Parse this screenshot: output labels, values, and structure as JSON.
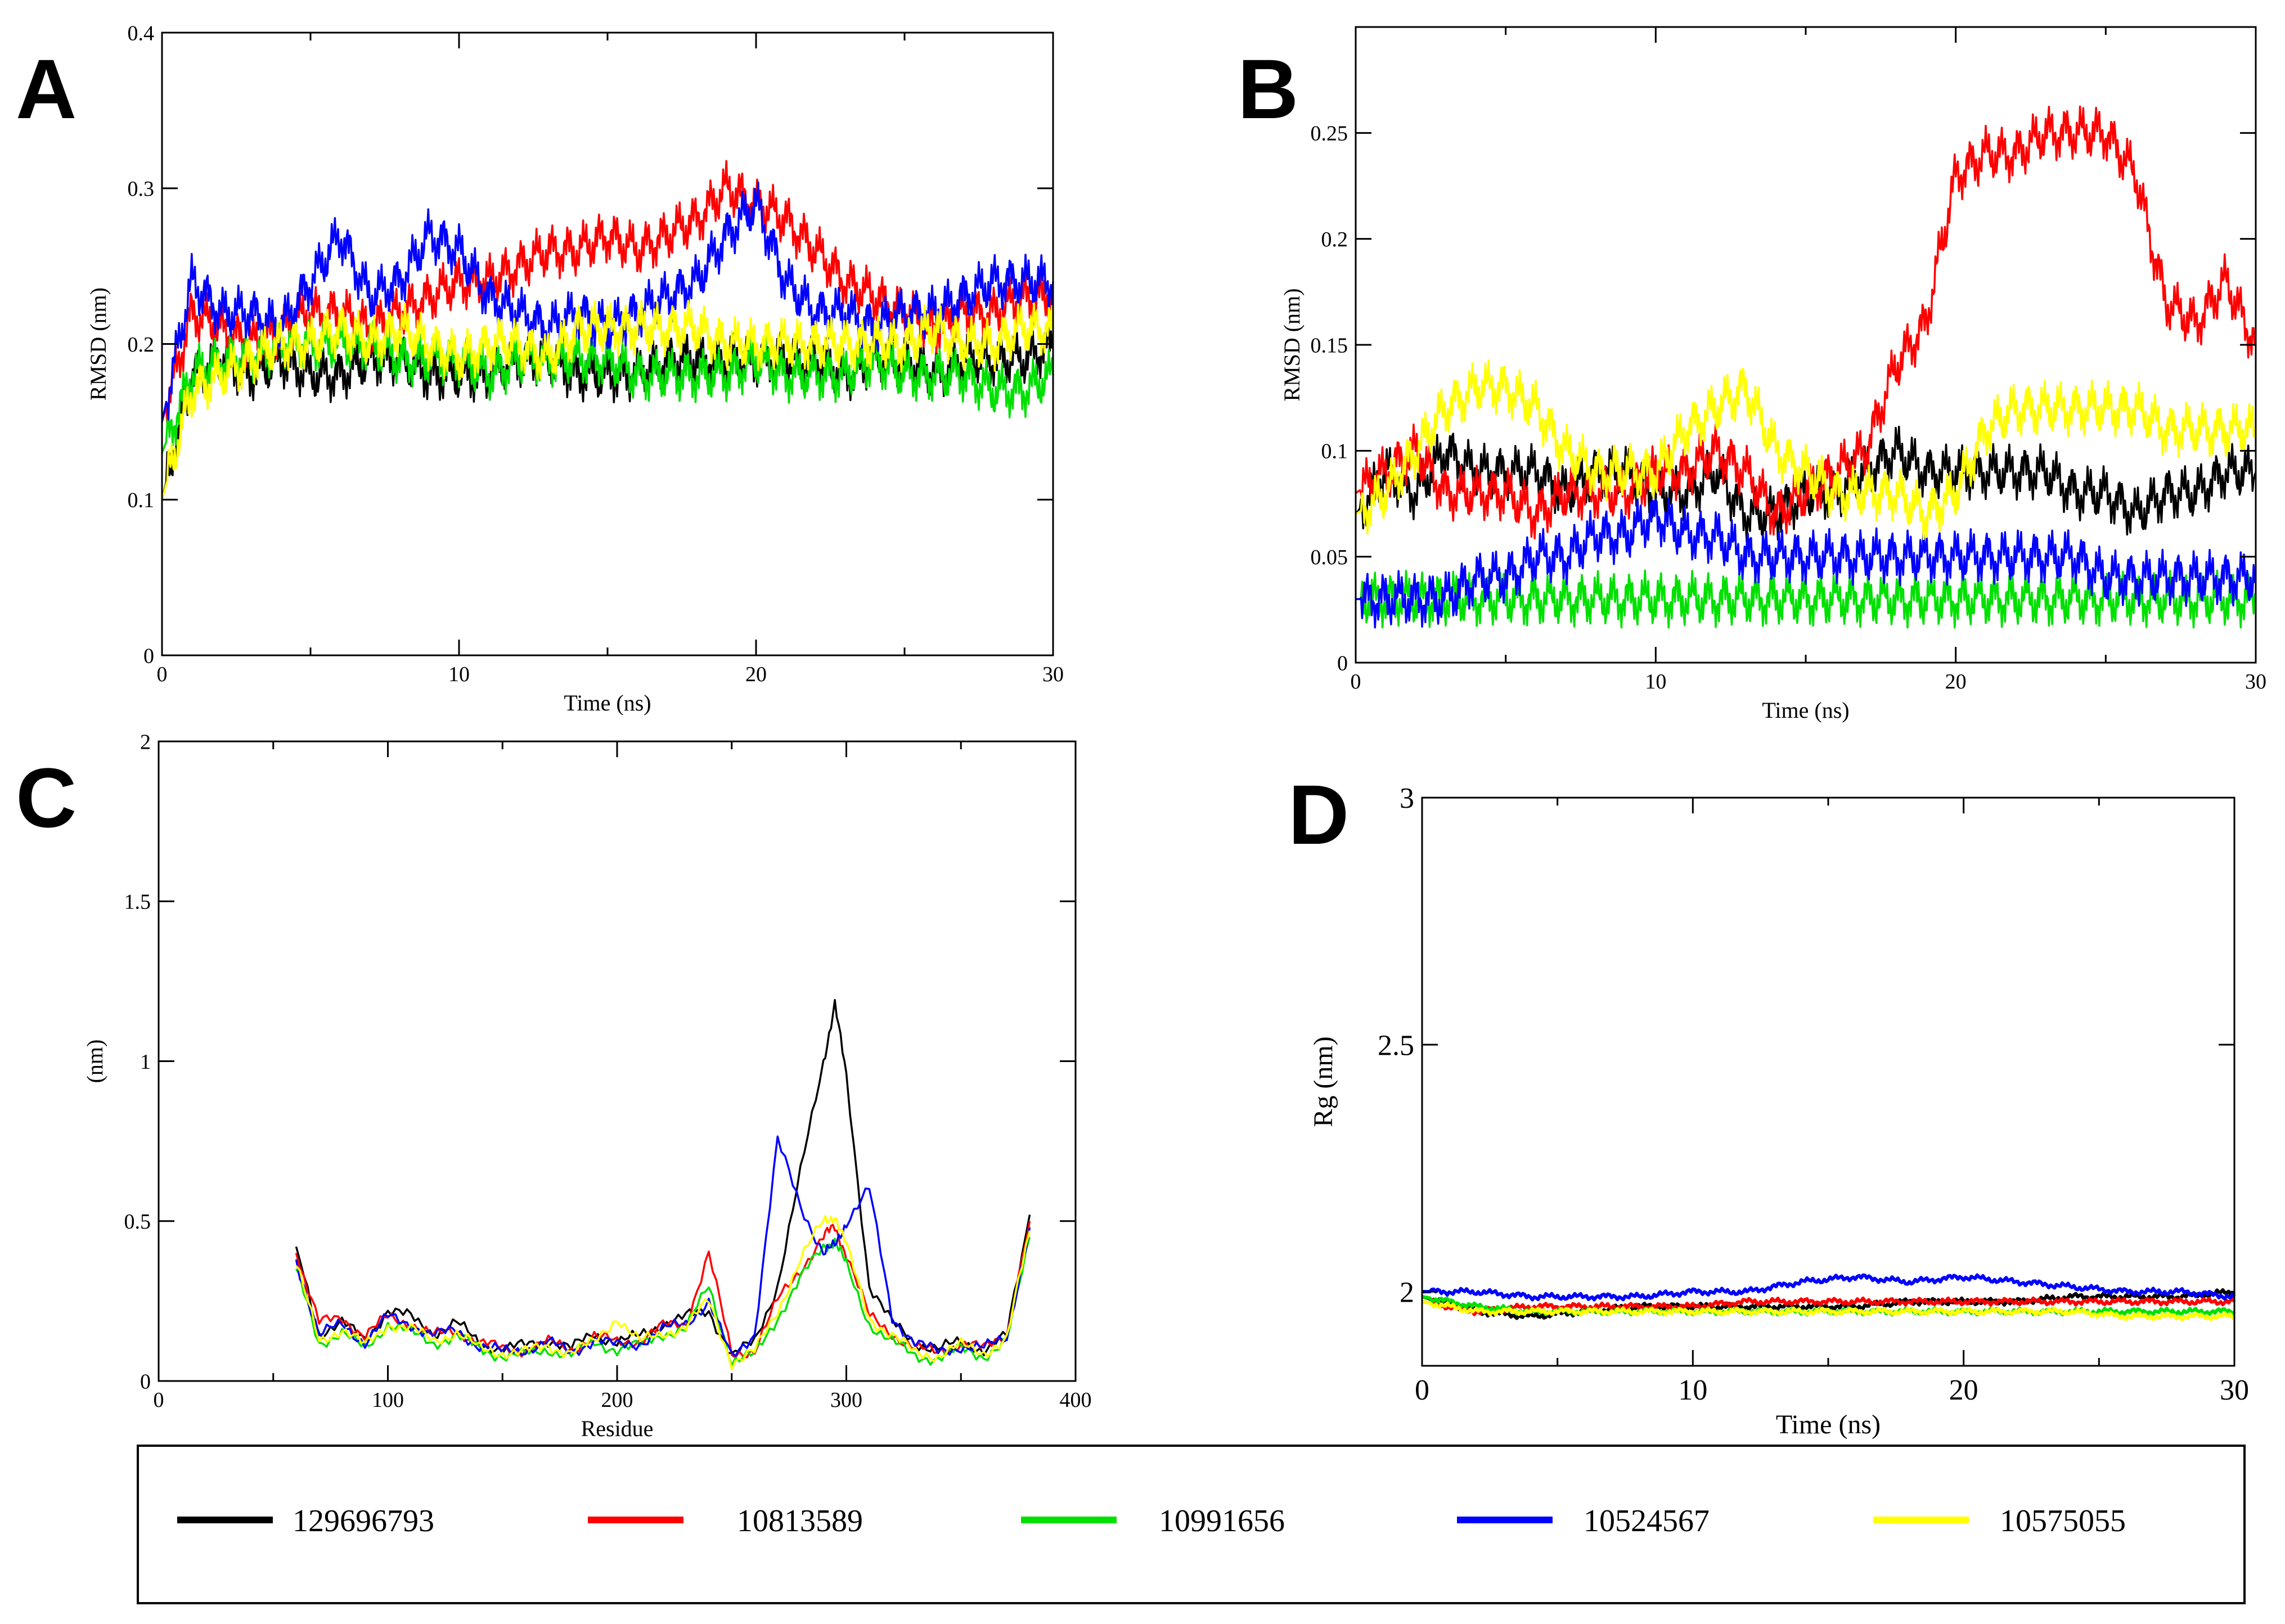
{
  "figure": {
    "series_names": [
      "129696793",
      "10813589",
      "10991656",
      "10524567",
      "10575055"
    ],
    "series_colors": [
      "#000000",
      "#ff0000",
      "#00e000",
      "#0000ff",
      "#ffff00"
    ]
  },
  "chart_data": [
    {
      "panel": "A",
      "type": "line",
      "xlabel": "Time (ns)",
      "ylabel": "RMSD (nm)",
      "xlim": [
        0,
        30
      ],
      "ylim": [
        0,
        0.4
      ],
      "xticks": [
        0,
        10,
        20,
        30
      ],
      "yticks": [
        0,
        0.1,
        0.2,
        0.3,
        0.4
      ],
      "x": [
        0,
        1,
        2,
        3,
        4,
        5,
        6,
        7,
        8,
        9,
        10,
        11,
        12,
        13,
        14,
        15,
        16,
        17,
        18,
        19,
        20,
        21,
        22,
        23,
        24,
        25,
        26,
        27,
        28,
        29,
        30
      ],
      "series": [
        {
          "name": "129696793",
          "color": "#000000",
          "values": [
            0.1,
            0.18,
            0.19,
            0.18,
            0.19,
            0.18,
            0.18,
            0.19,
            0.19,
            0.18,
            0.18,
            0.18,
            0.19,
            0.19,
            0.18,
            0.18,
            0.18,
            0.19,
            0.19,
            0.19,
            0.19,
            0.19,
            0.19,
            0.18,
            0.19,
            0.19,
            0.18,
            0.19,
            0.19,
            0.19,
            0.2
          ]
        },
        {
          "name": "10813589",
          "color": "#ff0000",
          "values": [
            0.15,
            0.22,
            0.21,
            0.2,
            0.21,
            0.22,
            0.22,
            0.21,
            0.22,
            0.23,
            0.24,
            0.24,
            0.25,
            0.26,
            0.26,
            0.27,
            0.26,
            0.27,
            0.28,
            0.3,
            0.29,
            0.28,
            0.26,
            0.24,
            0.23,
            0.22,
            0.21,
            0.22,
            0.22,
            0.23,
            0.23
          ]
        },
        {
          "name": "10991656",
          "color": "#00e000",
          "values": [
            0.13,
            0.18,
            0.19,
            0.19,
            0.2,
            0.2,
            0.2,
            0.2,
            0.19,
            0.19,
            0.19,
            0.18,
            0.19,
            0.19,
            0.19,
            0.19,
            0.18,
            0.18,
            0.18,
            0.18,
            0.19,
            0.18,
            0.18,
            0.18,
            0.19,
            0.18,
            0.18,
            0.18,
            0.17,
            0.17,
            0.18
          ]
        },
        {
          "name": "10524567",
          "color": "#0000ff",
          "values": [
            0.15,
            0.24,
            0.22,
            0.22,
            0.21,
            0.24,
            0.27,
            0.23,
            0.24,
            0.27,
            0.26,
            0.23,
            0.22,
            0.21,
            0.22,
            0.21,
            0.22,
            0.23,
            0.24,
            0.27,
            0.29,
            0.24,
            0.22,
            0.22,
            0.21,
            0.22,
            0.22,
            0.23,
            0.24,
            0.24,
            0.24
          ]
        },
        {
          "name": "10575055",
          "color": "#ffff00",
          "values": [
            0.1,
            0.17,
            0.18,
            0.19,
            0.2,
            0.2,
            0.21,
            0.2,
            0.21,
            0.2,
            0.19,
            0.2,
            0.2,
            0.19,
            0.21,
            0.21,
            0.21,
            0.21,
            0.21,
            0.2,
            0.2,
            0.2,
            0.2,
            0.2,
            0.2,
            0.2,
            0.21,
            0.2,
            0.2,
            0.21,
            0.21
          ]
        }
      ]
    },
    {
      "panel": "B",
      "type": "line",
      "xlabel": "Time (ns)",
      "ylabel": "RMSD (nm)",
      "xlim": [
        0,
        30
      ],
      "ylim": [
        0,
        0.3
      ],
      "xticks": [
        0,
        10,
        20,
        30
      ],
      "yticks": [
        0,
        0.05,
        0.1,
        0.15,
        0.2,
        0.25
      ],
      "x": [
        0,
        1,
        2,
        3,
        4,
        5,
        6,
        7,
        8,
        9,
        10,
        11,
        12,
        13,
        14,
        15,
        16,
        17,
        18,
        19,
        20,
        21,
        22,
        23,
        24,
        25,
        26,
        27,
        28,
        29,
        30
      ],
      "series": [
        {
          "name": "129696793",
          "color": "#000000",
          "values": [
            0.07,
            0.09,
            0.08,
            0.1,
            0.09,
            0.09,
            0.09,
            0.08,
            0.09,
            0.09,
            0.08,
            0.08,
            0.09,
            0.07,
            0.07,
            0.08,
            0.08,
            0.09,
            0.1,
            0.09,
            0.09,
            0.09,
            0.09,
            0.09,
            0.08,
            0.08,
            0.07,
            0.08,
            0.08,
            0.09,
            0.09
          ]
        },
        {
          "name": "10813589",
          "color": "#ff0000",
          "values": [
            0.08,
            0.09,
            0.1,
            0.08,
            0.08,
            0.08,
            0.07,
            0.08,
            0.08,
            0.08,
            0.09,
            0.09,
            0.1,
            0.09,
            0.07,
            0.08,
            0.09,
            0.1,
            0.14,
            0.16,
            0.23,
            0.24,
            0.24,
            0.25,
            0.25,
            0.25,
            0.23,
            0.17,
            0.16,
            0.18,
            0.15
          ]
        },
        {
          "name": "10991656",
          "color": "#00e000",
          "values": [
            0.03,
            0.03,
            0.03,
            0.03,
            0.03,
            0.03,
            0.03,
            0.03,
            0.03,
            0.03,
            0.03,
            0.03,
            0.03,
            0.03,
            0.03,
            0.03,
            0.03,
            0.03,
            0.03,
            0.03,
            0.03,
            0.03,
            0.03,
            0.03,
            0.03,
            0.03,
            0.03,
            0.03,
            0.03,
            0.03,
            0.03
          ]
        },
        {
          "name": "10524567",
          "color": "#0000ff",
          "values": [
            0.03,
            0.03,
            0.03,
            0.03,
            0.04,
            0.04,
            0.05,
            0.05,
            0.06,
            0.06,
            0.07,
            0.06,
            0.06,
            0.05,
            0.05,
            0.05,
            0.05,
            0.05,
            0.05,
            0.05,
            0.05,
            0.05,
            0.05,
            0.05,
            0.05,
            0.04,
            0.04,
            0.04,
            0.04,
            0.04,
            0.04
          ]
        },
        {
          "name": "10575055",
          "color": "#ffff00",
          "values": [
            0.07,
            0.08,
            0.1,
            0.12,
            0.13,
            0.13,
            0.12,
            0.1,
            0.09,
            0.09,
            0.09,
            0.11,
            0.12,
            0.13,
            0.1,
            0.09,
            0.08,
            0.08,
            0.08,
            0.07,
            0.08,
            0.11,
            0.12,
            0.12,
            0.12,
            0.12,
            0.12,
            0.11,
            0.11,
            0.11,
            0.11
          ]
        }
      ]
    },
    {
      "panel": "C",
      "type": "line",
      "xlabel": "Residue",
      "ylabel": "(nm)",
      "xlim": [
        0,
        400
      ],
      "ylim": [
        0,
        2
      ],
      "xticks": [
        0,
        100,
        200,
        300,
        400
      ],
      "yticks": [
        0,
        0.5,
        1,
        1.5,
        2
      ],
      "x": [
        60,
        70,
        80,
        90,
        100,
        110,
        120,
        130,
        140,
        150,
        160,
        170,
        180,
        190,
        200,
        210,
        220,
        230,
        240,
        250,
        260,
        270,
        280,
        290,
        295,
        300,
        310,
        320,
        330,
        340,
        350,
        360,
        370,
        380
      ],
      "series": [
        {
          "name": "129696793",
          "color": "#000000",
          "values": [
            0.42,
            0.15,
            0.18,
            0.13,
            0.22,
            0.2,
            0.15,
            0.18,
            0.12,
            0.1,
            0.11,
            0.13,
            0.1,
            0.15,
            0.12,
            0.14,
            0.18,
            0.2,
            0.22,
            0.08,
            0.12,
            0.3,
            0.65,
            1.0,
            1.18,
            0.95,
            0.3,
            0.18,
            0.12,
            0.1,
            0.12,
            0.1,
            0.14,
            0.52
          ]
        },
        {
          "name": "10813589",
          "color": "#ff0000",
          "values": [
            0.4,
            0.18,
            0.2,
            0.14,
            0.2,
            0.18,
            0.14,
            0.16,
            0.12,
            0.1,
            0.1,
            0.12,
            0.1,
            0.14,
            0.12,
            0.13,
            0.17,
            0.18,
            0.4,
            0.08,
            0.1,
            0.25,
            0.35,
            0.45,
            0.48,
            0.4,
            0.2,
            0.15,
            0.1,
            0.09,
            0.12,
            0.1,
            0.15,
            0.5
          ]
        },
        {
          "name": "10991656",
          "color": "#00e000",
          "values": [
            0.35,
            0.12,
            0.15,
            0.1,
            0.18,
            0.15,
            0.12,
            0.14,
            0.1,
            0.08,
            0.08,
            0.1,
            0.08,
            0.12,
            0.1,
            0.11,
            0.15,
            0.16,
            0.3,
            0.06,
            0.08,
            0.2,
            0.32,
            0.42,
            0.44,
            0.36,
            0.18,
            0.12,
            0.08,
            0.07,
            0.1,
            0.08,
            0.12,
            0.45
          ]
        },
        {
          "name": "10524567",
          "color": "#0000ff",
          "values": [
            0.38,
            0.14,
            0.18,
            0.12,
            0.2,
            0.18,
            0.14,
            0.16,
            0.11,
            0.09,
            0.1,
            0.12,
            0.09,
            0.13,
            0.11,
            0.12,
            0.16,
            0.18,
            0.25,
            0.07,
            0.15,
            0.75,
            0.55,
            0.4,
            0.42,
            0.5,
            0.6,
            0.2,
            0.12,
            0.09,
            0.11,
            0.1,
            0.14,
            0.48
          ]
        },
        {
          "name": "10575055",
          "color": "#ffff00",
          "values": [
            0.36,
            0.13,
            0.16,
            0.11,
            0.18,
            0.16,
            0.13,
            0.15,
            0.1,
            0.09,
            0.09,
            0.11,
            0.09,
            0.12,
            0.2,
            0.12,
            0.15,
            0.17,
            0.25,
            0.06,
            0.09,
            0.22,
            0.38,
            0.5,
            0.52,
            0.42,
            0.2,
            0.14,
            0.09,
            0.08,
            0.11,
            0.09,
            0.13,
            0.47
          ]
        }
      ]
    },
    {
      "panel": "D",
      "type": "line",
      "xlabel": "Time (ns)",
      "ylabel": "Rg (nm)",
      "xlim": [
        0,
        30
      ],
      "ylim": [
        1.85,
        3
      ],
      "xticks": [
        0,
        10,
        20,
        30
      ],
      "yticks": [
        2,
        2.5,
        3
      ],
      "x": [
        0,
        2,
        4,
        6,
        8,
        10,
        12,
        14,
        16,
        18,
        20,
        22,
        24,
        26,
        28,
        30
      ],
      "series": [
        {
          "name": "129696793",
          "color": "#000000",
          "values": [
            1.99,
            1.96,
            1.95,
            1.96,
            1.97,
            1.97,
            1.97,
            1.97,
            1.97,
            1.98,
            1.98,
            1.98,
            1.99,
            1.99,
            1.99,
            2.0
          ]
        },
        {
          "name": "10813589",
          "color": "#ff0000",
          "values": [
            1.98,
            1.96,
            1.97,
            1.97,
            1.97,
            1.97,
            1.98,
            1.98,
            1.98,
            1.98,
            1.98,
            1.98,
            1.98,
            1.98,
            1.98,
            1.98
          ]
        },
        {
          "name": "10991656",
          "color": "#00e000",
          "values": [
            1.99,
            1.97,
            1.96,
            1.96,
            1.96,
            1.96,
            1.96,
            1.96,
            1.96,
            1.96,
            1.96,
            1.96,
            1.96,
            1.96,
            1.96,
            1.96
          ]
        },
        {
          "name": "10524567",
          "color": "#0000ff",
          "values": [
            2.0,
            2.0,
            1.99,
            1.99,
            1.99,
            2.0,
            2.0,
            2.02,
            2.03,
            2.02,
            2.03,
            2.02,
            2.01,
            2.0,
            2.0,
            1.99
          ]
        },
        {
          "name": "10575055",
          "color": "#ffff00",
          "values": [
            1.98,
            1.96,
            1.96,
            1.96,
            1.96,
            1.96,
            1.96,
            1.96,
            1.96,
            1.96,
            1.96,
            1.96,
            1.96,
            1.95,
            1.95,
            1.95
          ]
        }
      ]
    }
  ]
}
